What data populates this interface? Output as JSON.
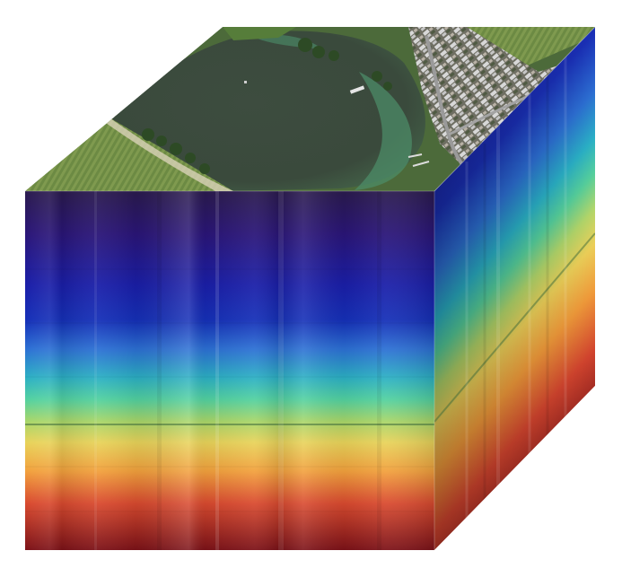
{
  "image": {
    "subject": "hyperspectral-data-cube",
    "faces": {
      "top": "aerial-image",
      "front": "spectral-bands",
      "side": "spectral-bands"
    },
    "colormap": [
      "#1f0a4a",
      "#2a1170",
      "#1b1aa0",
      "#1427b0",
      "#2b5ad0",
      "#2aa6c8",
      "#45cfa4",
      "#9fd36a",
      "#e7d35a",
      "#f39a3a",
      "#d6452f",
      "#a01d1d",
      "#7a0f17"
    ],
    "colors": {
      "water": "#3b4a3e",
      "shore_shallow": "#4d8f6a",
      "field": "#5e7a3c",
      "roof": "#c8c8c8",
      "road": "#8d8d8d",
      "background": "#ffffff"
    }
  }
}
